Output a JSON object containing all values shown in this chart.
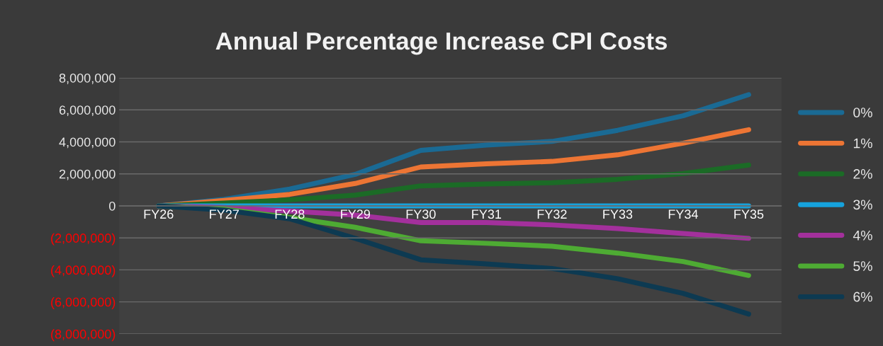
{
  "chart_data": {
    "type": "line",
    "title": "Annual Percentage Increase CPI Costs",
    "categories": [
      "FY26",
      "FY27",
      "FY28",
      "FY29",
      "FY30",
      "FY31",
      "FY32",
      "FY33",
      "FY34",
      "FY35"
    ],
    "series": [
      {
        "name": "0%",
        "color": "#1a6a94",
        "values": [
          0,
          410000,
          1050000,
          1970000,
          3470000,
          3800000,
          4030000,
          4720000,
          5630000,
          6950000
        ]
      },
      {
        "name": "1%",
        "color": "#ed7534",
        "values": [
          0,
          340000,
          720000,
          1400000,
          2430000,
          2630000,
          2780000,
          3190000,
          3920000,
          4760000
        ]
      },
      {
        "name": "2%",
        "color": "#1b6b26",
        "values": [
          0,
          180000,
          380000,
          670000,
          1250000,
          1370000,
          1450000,
          1660000,
          2020000,
          2550000
        ]
      },
      {
        "name": "3%",
        "color": "#16a2dc",
        "values": [
          0,
          0,
          0,
          0,
          0,
          0,
          0,
          0,
          0,
          0
        ]
      },
      {
        "name": "4%",
        "color": "#a3309c",
        "values": [
          0,
          -100000,
          -320000,
          -580000,
          -1040000,
          -1040000,
          -1190000,
          -1420000,
          -1730000,
          -2030000
        ]
      },
      {
        "name": "5%",
        "color": "#4eab33",
        "values": [
          0,
          -200000,
          -730000,
          -1340000,
          -2180000,
          -2340000,
          -2520000,
          -2950000,
          -3480000,
          -4350000
        ]
      },
      {
        "name": "6%",
        "color": "#0d3a52",
        "values": [
          0,
          -270000,
          -810000,
          -2030000,
          -3370000,
          -3630000,
          -3910000,
          -4550000,
          -5470000,
          -6760000
        ]
      }
    ],
    "ylim": [
      -8000000,
      8000000
    ],
    "yticks": [
      {
        "value": -8000000,
        "label": "(8,000,000)"
      },
      {
        "value": -6000000,
        "label": "(6,000,000)"
      },
      {
        "value": -4000000,
        "label": "(4,000,000)"
      },
      {
        "value": -2000000,
        "label": "(2,000,000)"
      },
      {
        "value": 0,
        "label": "0"
      },
      {
        "value": 2000000,
        "label": "2,000,000"
      },
      {
        "value": 4000000,
        "label": "4,000,000"
      },
      {
        "value": 6000000,
        "label": "6,000,000"
      },
      {
        "value": 8000000,
        "label": "8,000,000"
      }
    ],
    "grid": "y",
    "legend": "right",
    "line_style": "solid",
    "marker": "none"
  }
}
